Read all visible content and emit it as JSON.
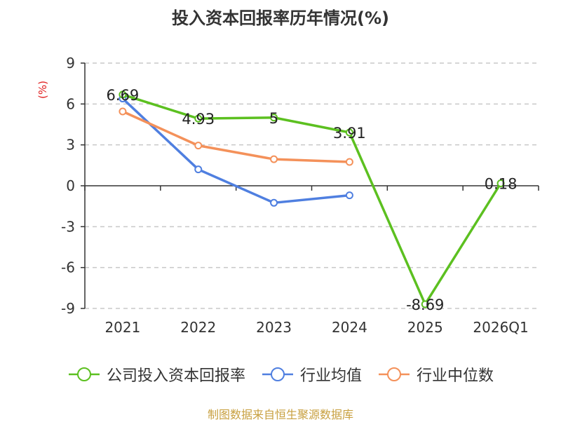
{
  "title": "投入资本回报率历年情况(%)",
  "source": "制图数据来自恒生聚源数据库",
  "legend": [
    {
      "label": "公司投入资本回报率",
      "color": "#5cc020"
    },
    {
      "label": "行业均值",
      "color": "#4f7fe0"
    },
    {
      "label": "行业中位数",
      "color": "#f4915a"
    }
  ],
  "chart_data": {
    "type": "line",
    "categories": [
      "2021",
      "2022",
      "2023",
      "2024",
      "2025",
      "2026Q1"
    ],
    "ylabel": "(%)",
    "ylim": [
      -9,
      9
    ],
    "yticks": [
      9,
      6,
      3,
      0,
      -3,
      -6,
      -9
    ],
    "grid": true,
    "series": [
      {
        "name": "公司投入资本回报率",
        "color": "#5cc020",
        "values": [
          6.69,
          4.93,
          5,
          3.91,
          -8.69,
          0.18
        ],
        "labels": [
          "6.69",
          "4.93",
          "5",
          "3.91",
          "-8.69",
          "0.18"
        ]
      },
      {
        "name": "行业均值",
        "color": "#4f7fe0",
        "values": [
          6.4,
          1.2,
          -1.25,
          -0.7,
          null,
          null
        ]
      },
      {
        "name": "行业中位数",
        "color": "#f4915a",
        "values": [
          5.45,
          2.95,
          1.95,
          1.75,
          null,
          null
        ]
      }
    ]
  }
}
